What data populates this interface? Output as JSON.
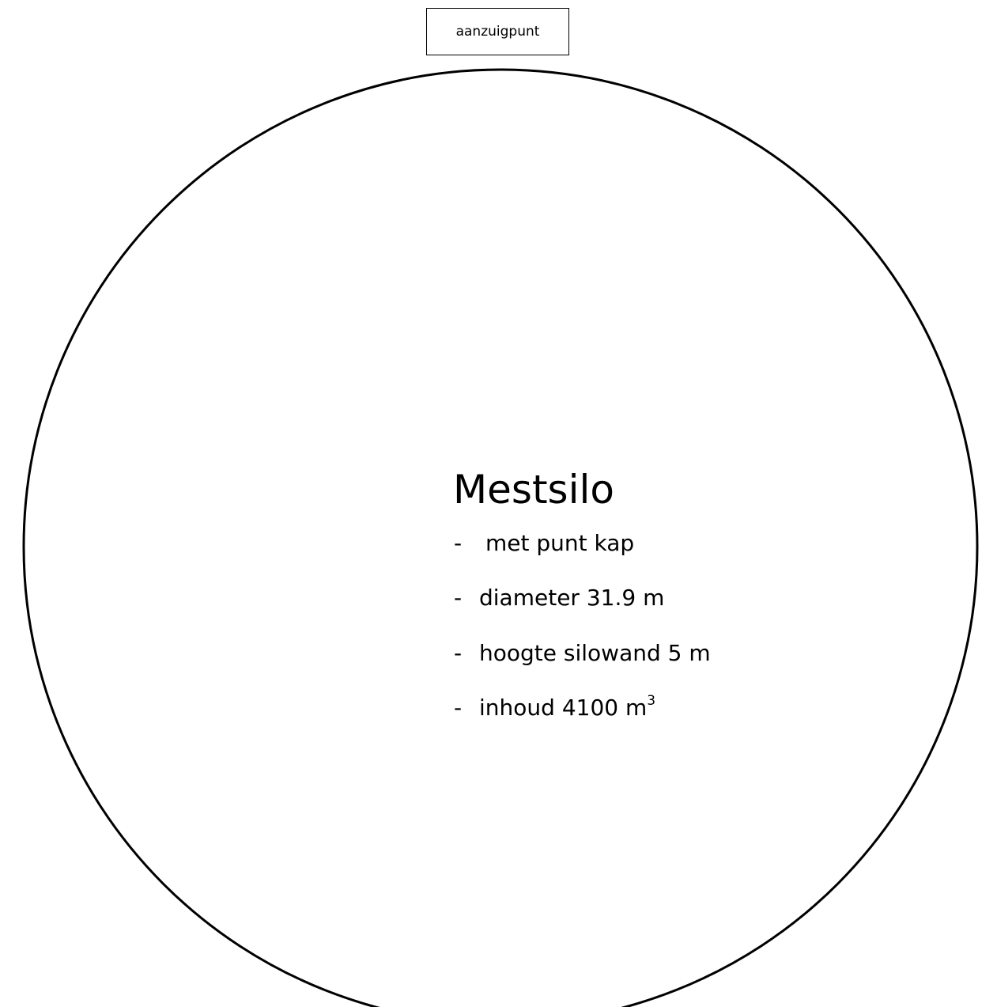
{
  "suction_point": {
    "label": "aanzuigpunt"
  },
  "silo": {
    "title": "Mestsilo",
    "specs": [
      {
        "dash": "-",
        "text": "met punt kap"
      },
      {
        "dash": "-",
        "text": "diameter  31.9 m"
      },
      {
        "dash": "-",
        "text": "hoogte silowand 5 m"
      },
      {
        "dash": "-",
        "text": "inhoud 4100 m",
        "superscript": "3"
      }
    ]
  },
  "colors": {
    "outline": "#000000",
    "background": "#ffffff"
  }
}
